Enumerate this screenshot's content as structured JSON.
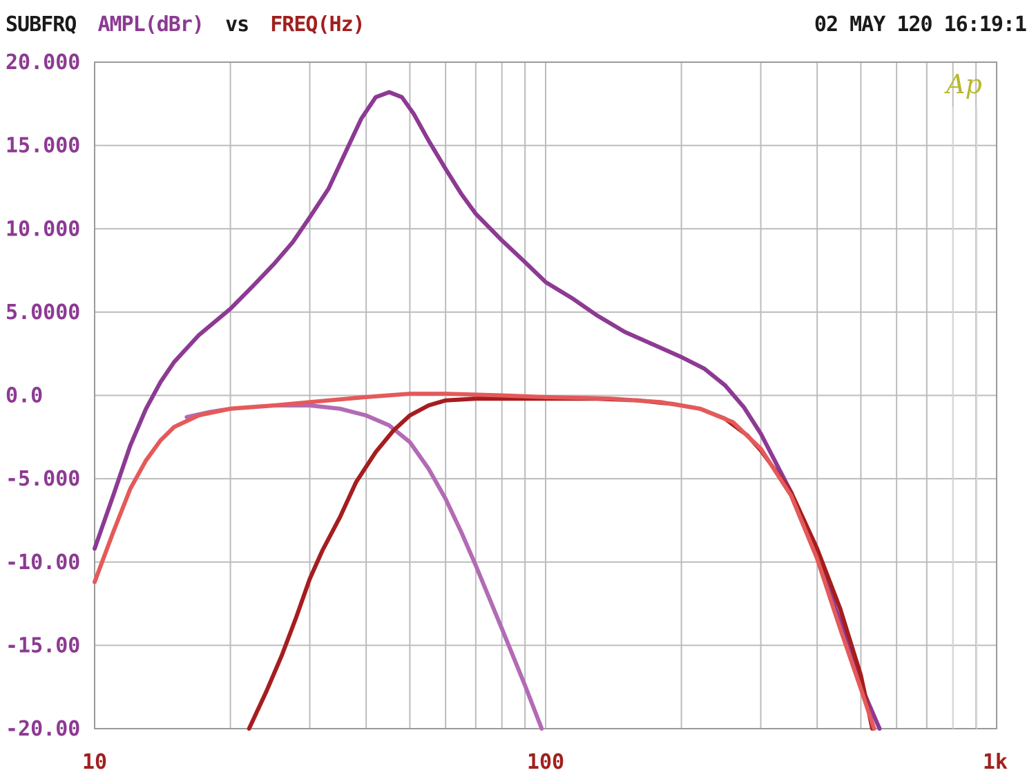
{
  "header": {
    "title": "SUBFRQ",
    "y_quantity": "AMPL(dBr)",
    "vs": "vs",
    "x_quantity": "FREQ(Hz)",
    "timestamp": "02 MAY 120 16:19:1"
  },
  "logo": {
    "text": "Ap"
  },
  "colors": {
    "purple": "#8c3a93",
    "light_purple": "#b26bb5",
    "dark_red": "#a51d1f",
    "light_red": "#e45a5a",
    "grid": "#bcbcbc"
  },
  "chart_data": {
    "type": "line",
    "x_scale": "log",
    "xlim": [
      10,
      1000
    ],
    "ylim": [
      -20,
      20
    ],
    "grid": true,
    "x_tick_labels": [
      "10",
      "100",
      "1k"
    ],
    "y_tick_labels": [
      "20.000",
      "15.000",
      "10.000",
      "5.0000",
      "0.0",
      "-5.000",
      "-10.00",
      "-15.00",
      "-20.00"
    ],
    "series": [
      {
        "color": "#8c3a93",
        "points": [
          [
            10,
            -9.2
          ],
          [
            11,
            -6
          ],
          [
            12,
            -3
          ],
          [
            13,
            -0.8
          ],
          [
            14,
            0.8
          ],
          [
            15,
            2
          ],
          [
            17,
            3.6
          ],
          [
            20,
            5.2
          ],
          [
            22.5,
            6.6
          ],
          [
            25,
            7.9
          ],
          [
            27.5,
            9.2
          ],
          [
            30,
            10.7
          ],
          [
            33,
            12.4
          ],
          [
            36,
            14.6
          ],
          [
            39,
            16.6
          ],
          [
            42,
            17.9
          ],
          [
            45,
            18.2
          ],
          [
            48,
            17.9
          ],
          [
            51,
            16.9
          ],
          [
            55,
            15.3
          ],
          [
            60,
            13.6
          ],
          [
            65,
            12.1
          ],
          [
            70,
            10.9
          ],
          [
            80,
            9.3
          ],
          [
            90,
            8
          ],
          [
            100,
            6.8
          ],
          [
            115,
            5.8
          ],
          [
            130,
            4.8
          ],
          [
            150,
            3.8
          ],
          [
            175,
            3
          ],
          [
            200,
            2.3
          ],
          [
            225,
            1.6
          ],
          [
            250,
            0.6
          ],
          [
            275,
            -0.7
          ],
          [
            300,
            -2.3
          ],
          [
            350,
            -5.8
          ],
          [
            400,
            -9.6
          ],
          [
            450,
            -13.6
          ],
          [
            500,
            -17.4
          ],
          [
            550,
            -20
          ]
        ]
      },
      {
        "color": "#b26bb5",
        "points": [
          [
            16,
            -1.3
          ],
          [
            18,
            -1
          ],
          [
            20,
            -0.8
          ],
          [
            25,
            -0.6
          ],
          [
            30,
            -0.6
          ],
          [
            35,
            -0.8
          ],
          [
            40,
            -1.2
          ],
          [
            45,
            -1.8
          ],
          [
            50,
            -2.8
          ],
          [
            55,
            -4.4
          ],
          [
            60,
            -6.2
          ],
          [
            65,
            -8.2
          ],
          [
            70,
            -10.2
          ],
          [
            80,
            -14
          ],
          [
            90,
            -17.4
          ],
          [
            98,
            -20
          ]
        ]
      },
      {
        "color": "#a51d1f",
        "points": [
          [
            22,
            -20
          ],
          [
            24,
            -17.8
          ],
          [
            26,
            -15.6
          ],
          [
            28,
            -13.3
          ],
          [
            30,
            -11
          ],
          [
            32,
            -9.3
          ],
          [
            35,
            -7.3
          ],
          [
            38,
            -5.2
          ],
          [
            42,
            -3.4
          ],
          [
            46,
            -2.1
          ],
          [
            50,
            -1.2
          ],
          [
            55,
            -0.6
          ],
          [
            60,
            -0.3
          ],
          [
            70,
            -0.2
          ],
          [
            80,
            -0.2
          ],
          [
            100,
            -0.2
          ],
          [
            130,
            -0.2
          ],
          [
            160,
            -0.3
          ],
          [
            190,
            -0.5
          ],
          [
            220,
            -0.8
          ],
          [
            250,
            -1.4
          ],
          [
            280,
            -2.4
          ],
          [
            300,
            -3.3
          ],
          [
            350,
            -5.8
          ],
          [
            400,
            -9.2
          ],
          [
            450,
            -12.8
          ],
          [
            500,
            -16.8
          ],
          [
            530,
            -20
          ]
        ]
      },
      {
        "color": "#e45a5a",
        "points": [
          [
            10,
            -11.2
          ],
          [
            11,
            -8.2
          ],
          [
            12,
            -5.6
          ],
          [
            13,
            -3.9
          ],
          [
            14,
            -2.7
          ],
          [
            15,
            -1.9
          ],
          [
            17,
            -1.2
          ],
          [
            20,
            -0.8
          ],
          [
            25,
            -0.6
          ],
          [
            30,
            -0.4
          ],
          [
            40,
            -0.1
          ],
          [
            50,
            0.1
          ],
          [
            60,
            0.1
          ],
          [
            80,
            0
          ],
          [
            100,
            -0.1
          ],
          [
            140,
            -0.2
          ],
          [
            180,
            -0.4
          ],
          [
            220,
            -0.8
          ],
          [
            260,
            -1.6
          ],
          [
            300,
            -3.2
          ],
          [
            350,
            -6
          ],
          [
            400,
            -9.8
          ],
          [
            450,
            -14
          ],
          [
            500,
            -17.6
          ],
          [
            535,
            -20
          ]
        ]
      }
    ]
  }
}
